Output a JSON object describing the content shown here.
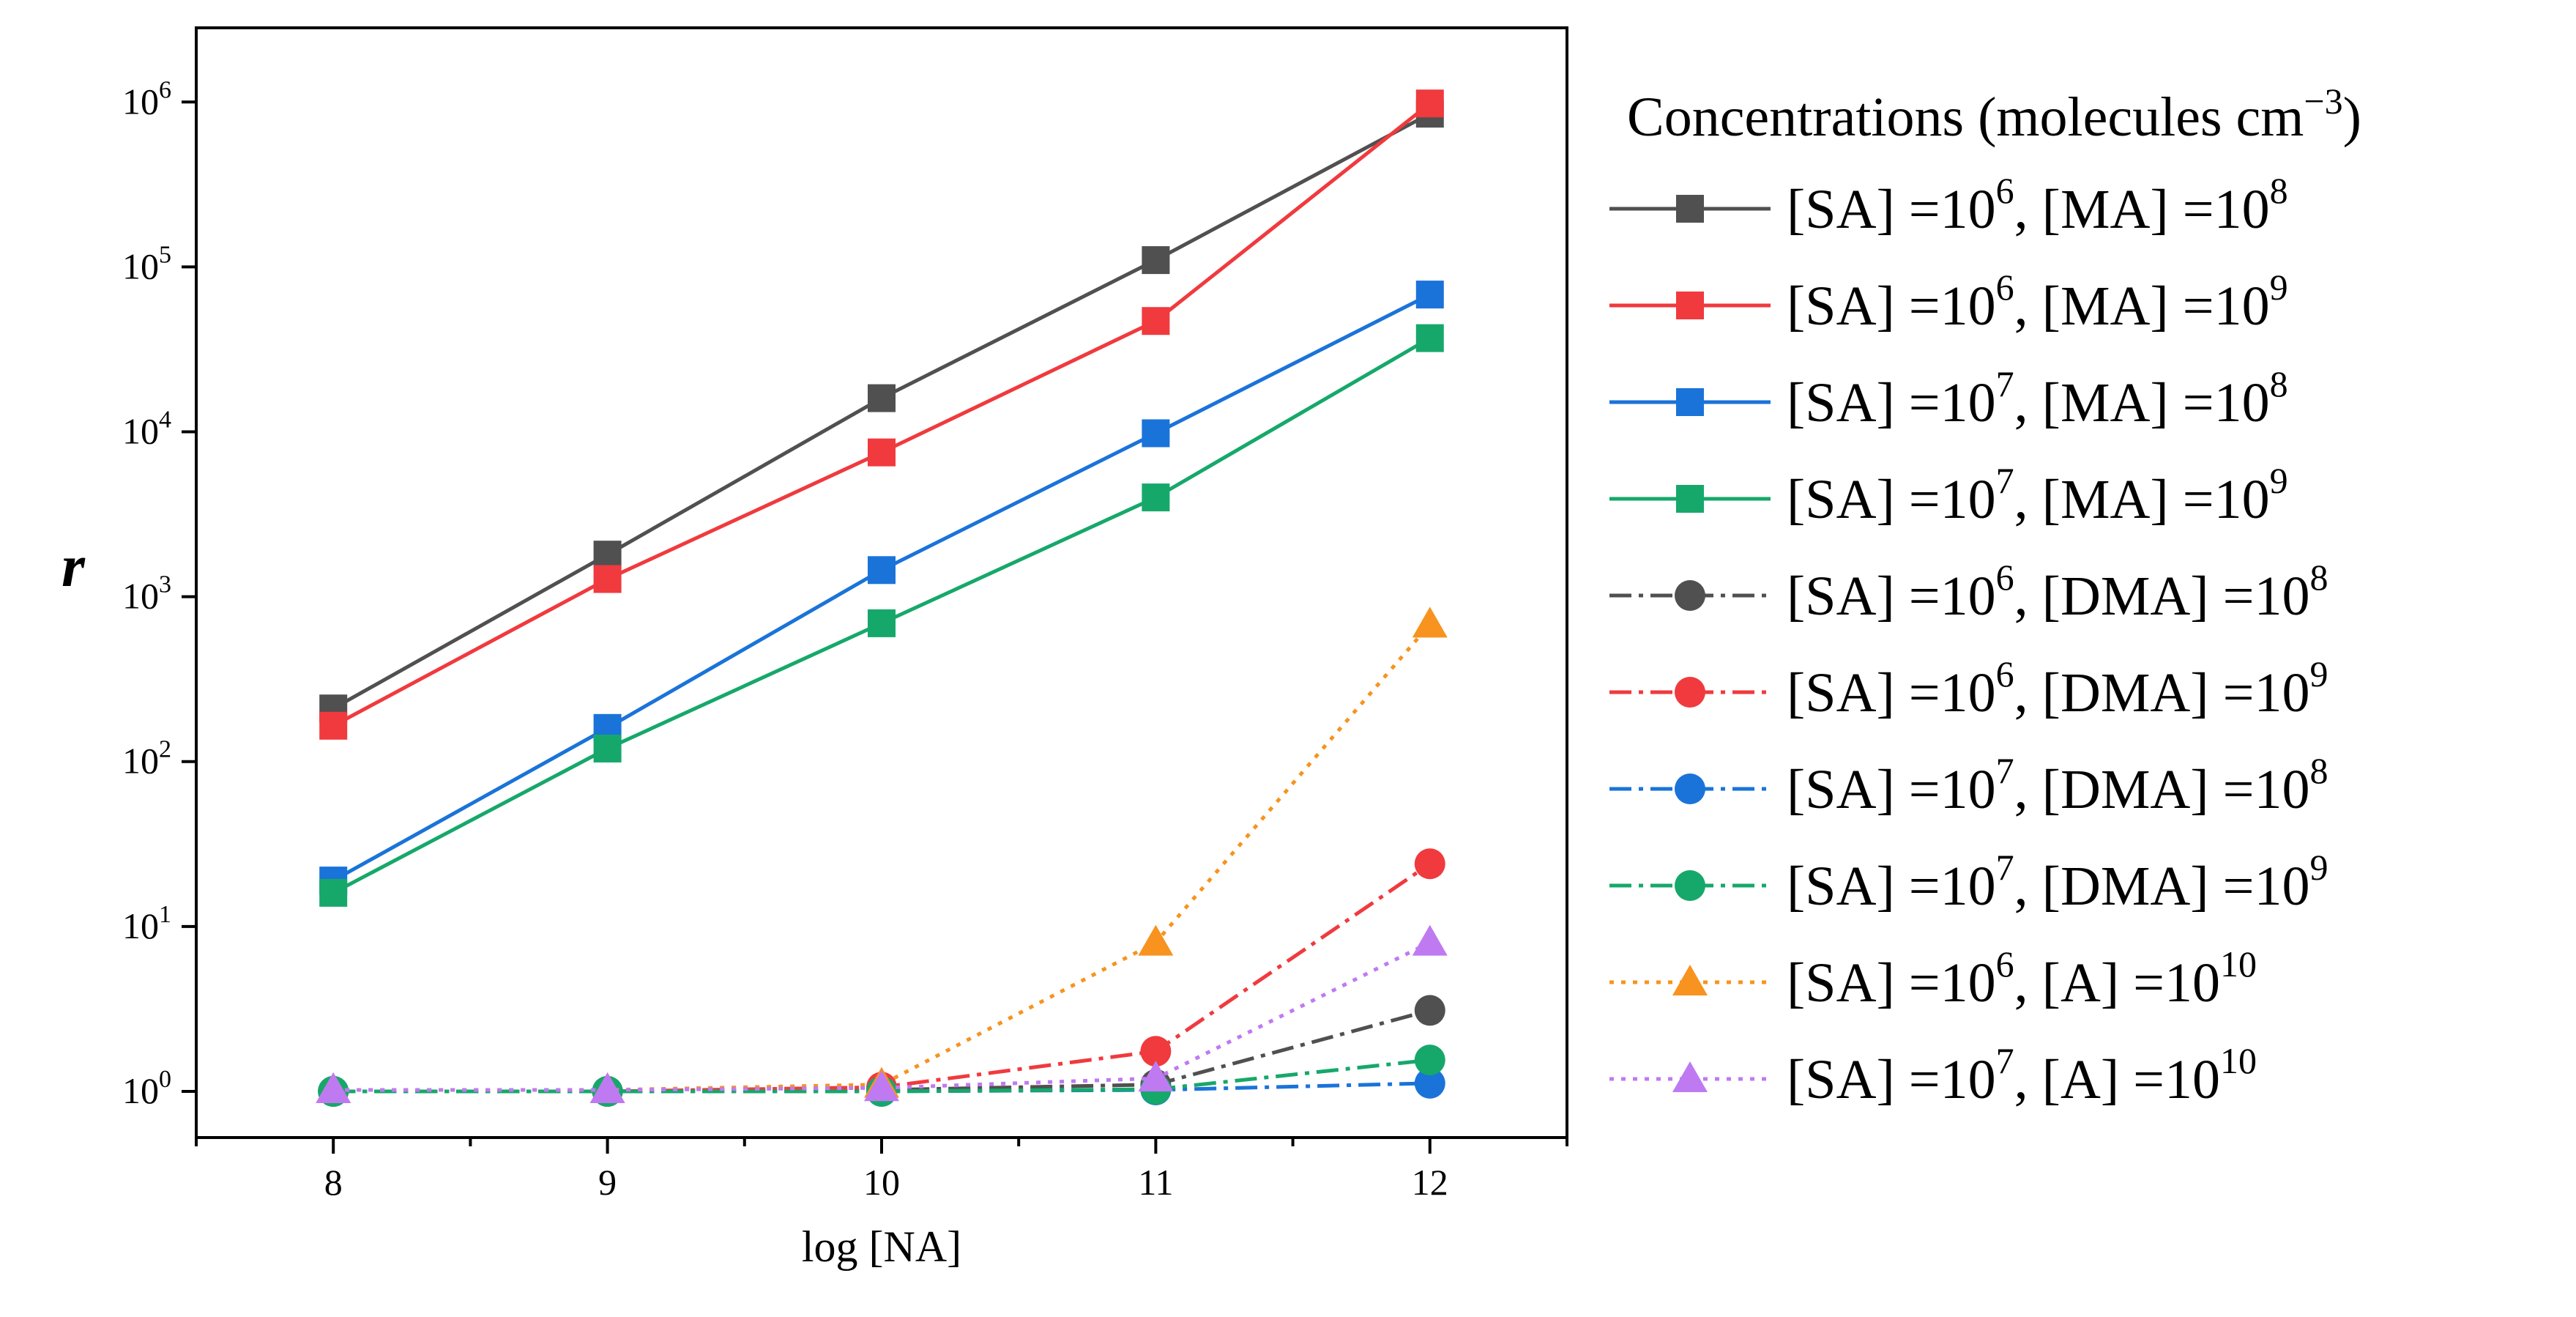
{
  "chart_data": {
    "type": "line",
    "title": "",
    "xlabel": "log [NA]",
    "ylabel": "r",
    "yscale": "log",
    "xlim": [
      7.5,
      12.5
    ],
    "ylim_exponent": [
      -0.28,
      6.45
    ],
    "x": [
      8,
      9,
      10,
      11,
      12
    ],
    "x_tick_labels": [
      "8",
      "9",
      "10",
      "11",
      "12"
    ],
    "y_tick_labels": [
      {
        "base": "10",
        "exp": "0"
      },
      {
        "base": "10",
        "exp": "1"
      },
      {
        "base": "10",
        "exp": "2"
      },
      {
        "base": "10",
        "exp": "3"
      },
      {
        "base": "10",
        "exp": "4"
      },
      {
        "base": "10",
        "exp": "5"
      },
      {
        "base": "10",
        "exp": "6"
      }
    ],
    "grid": false,
    "legend": {
      "placement": "right",
      "title": "Concentrations (molecules cm",
      "title_exp": "−3",
      "title_end": ")"
    },
    "series": [
      {
        "sa_exp": "6",
        "sp": "MA",
        "sp_exp": "8",
        "color": "#505050",
        "dash": "solid",
        "marker": "square",
        "values": [
          210,
          1800,
          16000,
          110000,
          850000
        ]
      },
      {
        "sa_exp": "6",
        "sp": "MA",
        "sp_exp": "9",
        "color": "#f03a3e",
        "dash": "solid",
        "marker": "square",
        "values": [
          165,
          1280,
          7500,
          47000,
          980000
        ]
      },
      {
        "sa_exp": "7",
        "sp": "MA",
        "sp_exp": "8",
        "color": "#1a73d9",
        "dash": "solid",
        "marker": "square",
        "values": [
          19,
          160,
          1450,
          9800,
          68000
        ]
      },
      {
        "sa_exp": "7",
        "sp": "MA",
        "sp_exp": "9",
        "color": "#16a86a",
        "dash": "solid",
        "marker": "square",
        "values": [
          16,
          120,
          690,
          4000,
          37000
        ]
      },
      {
        "sa_exp": "6",
        "sp": "DMA",
        "sp_exp": "8",
        "color": "#505050",
        "dash": "dashdot",
        "marker": "circle",
        "values": [
          1,
          1,
          1.02,
          1.1,
          3.1
        ]
      },
      {
        "sa_exp": "6",
        "sp": "DMA",
        "sp_exp": "9",
        "color": "#f03a3e",
        "dash": "dashdot",
        "marker": "circle",
        "values": [
          1,
          1,
          1.06,
          1.75,
          24
        ]
      },
      {
        "sa_exp": "7",
        "sp": "DMA",
        "sp_exp": "8",
        "color": "#1a73d9",
        "dash": "dashdot",
        "marker": "circle",
        "values": [
          1,
          1,
          1,
          1.02,
          1.12
        ]
      },
      {
        "sa_exp": "7",
        "sp": "DMA",
        "sp_exp": "9",
        "color": "#16a86a",
        "dash": "dashdot",
        "marker": "circle",
        "values": [
          1,
          1,
          1,
          1.03,
          1.55
        ]
      },
      {
        "sa_exp": "6",
        "sp": "A",
        "sp_exp": "10",
        "color": "#f7931e",
        "dash": "dotted",
        "marker": "triangle",
        "values": [
          1.02,
          1.02,
          1.1,
          8,
          680
        ]
      },
      {
        "sa_exp": "7",
        "sp": "A",
        "sp_exp": "10",
        "color": "#bf7af2",
        "dash": "dotted",
        "marker": "triangle",
        "values": [
          1.02,
          1.02,
          1.05,
          1.2,
          8
        ]
      }
    ]
  }
}
